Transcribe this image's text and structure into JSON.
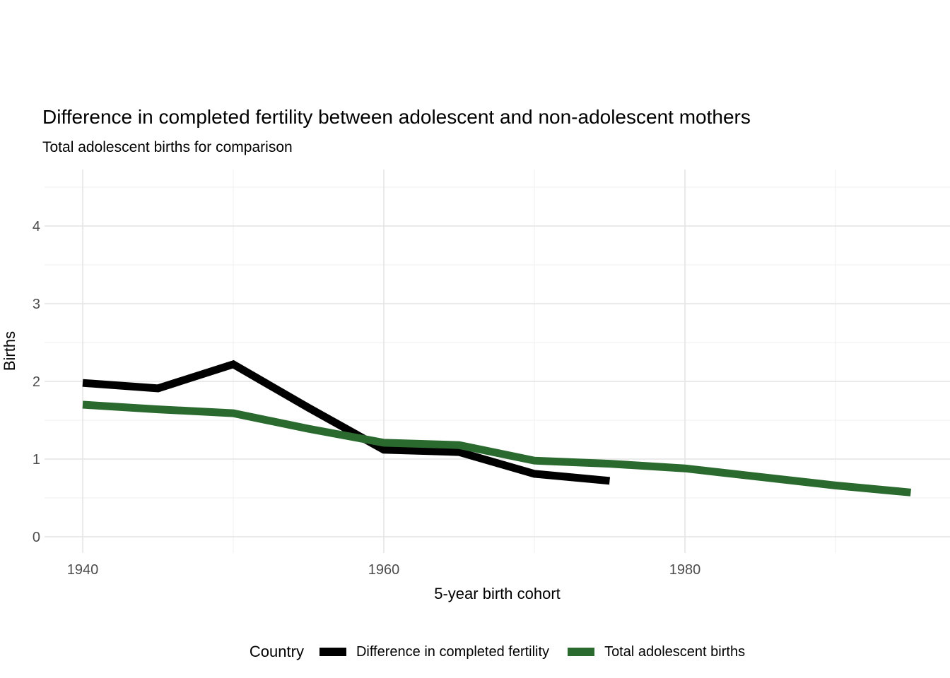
{
  "title": "Difference in completed fertility between adolescent and non-adolescent mothers",
  "subtitle": "Total adolescent births for comparison",
  "axes": {
    "x": {
      "title": "5-year birth cohort",
      "ticks": [
        1940,
        1960,
        1980
      ]
    },
    "y": {
      "title": "Births",
      "ticks": [
        0,
        1,
        2,
        3,
        4
      ]
    }
  },
  "legend": {
    "title": "Country",
    "items": [
      {
        "label": "Difference in completed fertility",
        "color": "#000000"
      },
      {
        "label": "Total adolescent births",
        "color": "#2b6a2f"
      }
    ]
  },
  "colors": {
    "grid_major": "#e4e4e4",
    "grid_minor": "#efefef",
    "tick_text": "#4d4d4d",
    "series_difference": "#000000",
    "series_total": "#2b6a2f"
  },
  "chart_data": {
    "type": "line",
    "title": "Difference in completed fertility between adolescent and non-adolescent mothers",
    "subtitle": "Total adolescent births for comparison",
    "xlabel": "5-year birth cohort",
    "ylabel": "Births",
    "xlim": [
      1937.5,
      1997.5
    ],
    "ylim": [
      0,
      4.7
    ],
    "xticks": [
      1940,
      1960,
      1980
    ],
    "yticks": [
      0,
      1,
      2,
      3,
      4
    ],
    "grid": true,
    "legend_position": "bottom",
    "legend_title": "Country",
    "series": [
      {
        "name": "Difference in completed fertility",
        "color": "#000000",
        "x": [
          1940,
          1945,
          1950,
          1955,
          1960,
          1965,
          1970,
          1975
        ],
        "values": [
          1.98,
          1.91,
          2.22,
          1.66,
          1.12,
          1.09,
          0.81,
          0.72
        ]
      },
      {
        "name": "Total adolescent births",
        "color": "#2b6a2f",
        "x": [
          1940,
          1945,
          1950,
          1955,
          1960,
          1965,
          1970,
          1975,
          1980,
          1985,
          1990,
          1995
        ],
        "values": [
          1.7,
          1.64,
          1.59,
          1.39,
          1.21,
          1.18,
          0.98,
          0.94,
          0.88,
          0.77,
          0.66,
          0.57
        ]
      }
    ]
  }
}
